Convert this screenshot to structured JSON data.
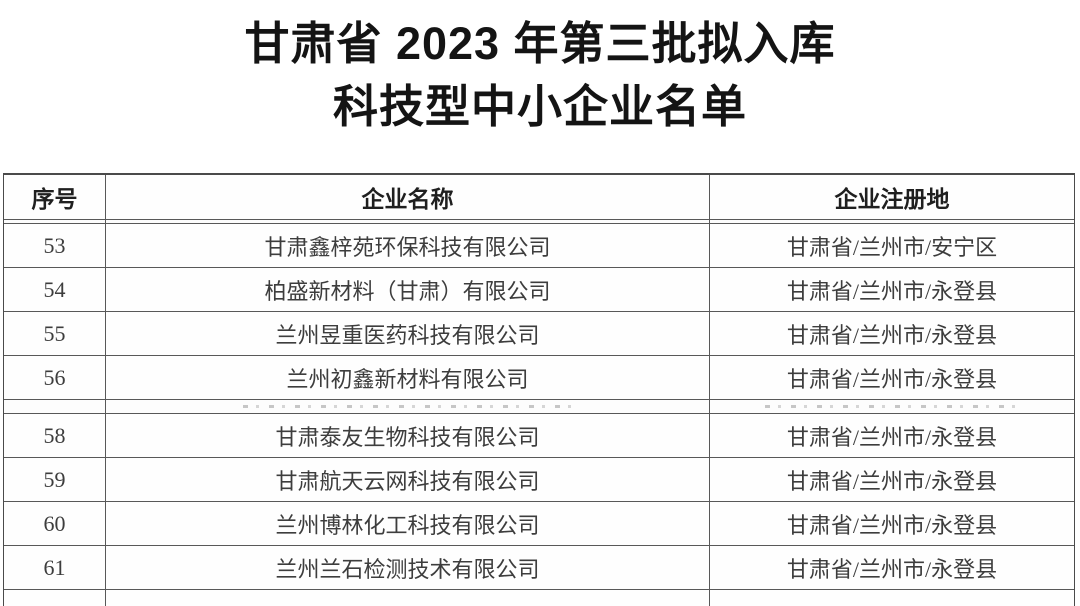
{
  "title": {
    "line1": "甘肃省 2023 年第三批拟入库",
    "line2": "科技型中小企业名单"
  },
  "table": {
    "headers": {
      "number": "序号",
      "name": "企业名称",
      "location": "企业注册地"
    },
    "rows": [
      {
        "number": "53",
        "name": "甘肃鑫梓苑环保科技有限公司",
        "location": "甘肃省/兰州市/安宁区"
      },
      {
        "number": "54",
        "name": "柏盛新材料（甘肃）有限公司",
        "location": "甘肃省/兰州市/永登县"
      },
      {
        "number": "55",
        "name": "兰州昱重医药科技有限公司",
        "location": "甘肃省/兰州市/永登县"
      },
      {
        "number": "56",
        "name": "兰州初鑫新材料有限公司",
        "location": "甘肃省/兰州市/永登县"
      },
      {
        "number": "",
        "name": "",
        "location": "",
        "state": "clipped-illegible"
      },
      {
        "number": "58",
        "name": "甘肃泰友生物科技有限公司",
        "location": "甘肃省/兰州市/永登县"
      },
      {
        "number": "59",
        "name": "甘肃航天云网科技有限公司",
        "location": "甘肃省/兰州市/永登县"
      },
      {
        "number": "60",
        "name": "兰州博林化工科技有限公司",
        "location": "甘肃省/兰州市/永登县"
      },
      {
        "number": "61",
        "name": "兰州兰石检测技术有限公司",
        "location": "甘肃省/兰州市/永登县"
      },
      {
        "number": "",
        "name": "",
        "location": "",
        "state": "partial-cut-off"
      }
    ]
  },
  "colors": {
    "border": "#585858",
    "title_text": "#141414",
    "header_text": "#1f1f1f",
    "body_text": "#3d3d3d",
    "background": "#ffffff"
  }
}
